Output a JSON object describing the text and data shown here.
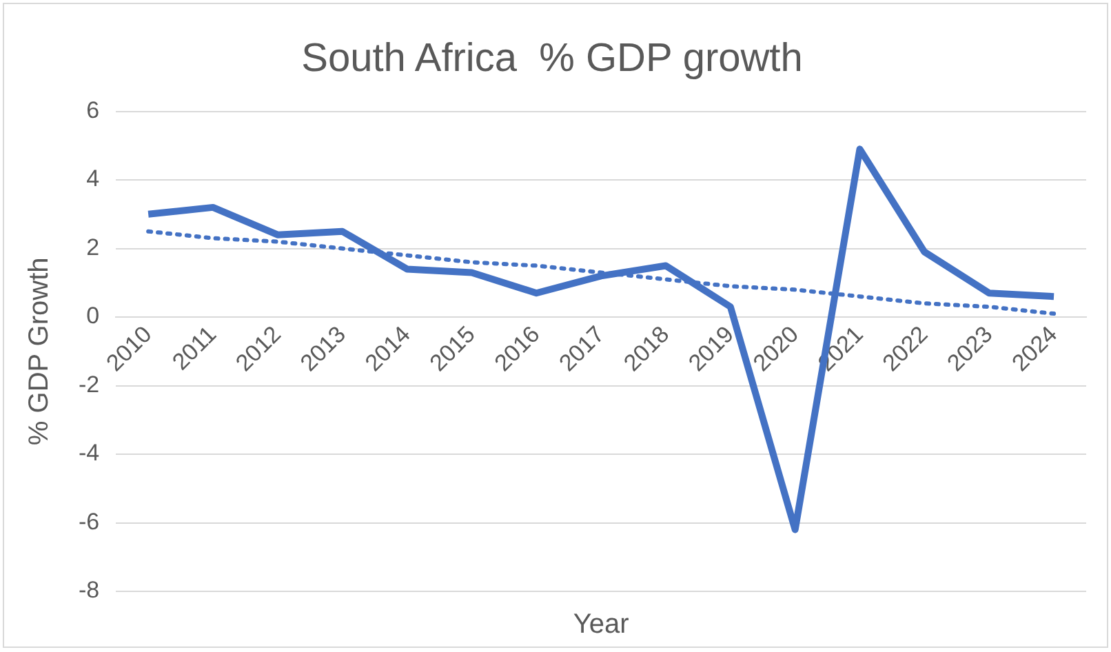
{
  "chart_data": {
    "type": "line",
    "title": "South Africa  % GDP growth",
    "xlabel": "Year",
    "ylabel": "% GDP Growth",
    "categories": [
      "2010",
      "2011",
      "2012",
      "2013",
      "2014",
      "2015",
      "2016",
      "2017",
      "2018",
      "2019",
      "2020",
      "2021",
      "2022",
      "2023",
      "2024"
    ],
    "series": [
      {
        "color": "#4472c4",
        "values": [
          3.0,
          3.2,
          2.4,
          2.5,
          1.4,
          1.3,
          0.7,
          1.2,
          1.5,
          0.3,
          -6.2,
          4.9,
          1.9,
          0.7,
          0.6
        ]
      },
      {
        "type": "line",
        "line_style": "dotted",
        "color": "#4472c4",
        "values": [
          2.5,
          2.3,
          2.2,
          2.0,
          1.8,
          1.6,
          1.5,
          1.3,
          1.1,
          0.9,
          0.8,
          0.6,
          0.4,
          0.3,
          0.1
        ]
      }
    ],
    "ylim": [
      -8,
      6
    ],
    "yticks": [
      -8,
      -6,
      -4,
      -2,
      0,
      2,
      4,
      6
    ],
    "grid": "y",
    "legend": false,
    "marker": "none"
  }
}
